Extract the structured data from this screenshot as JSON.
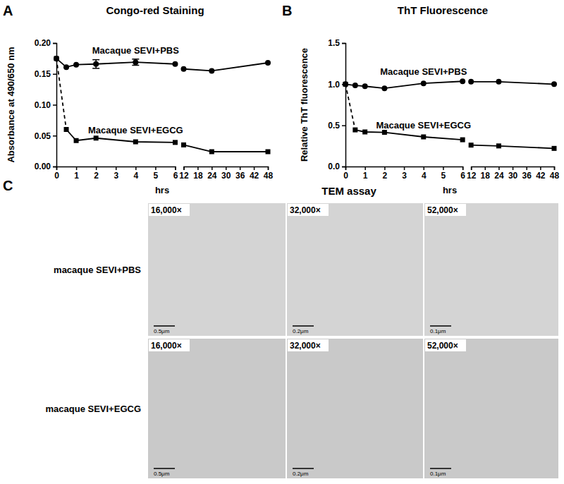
{
  "panel_labels": [
    "A",
    "B",
    "C"
  ],
  "chart_data": [
    {
      "type": "line",
      "title": "Congo-red Staining",
      "x_label": "hrs",
      "y_label": "Absorbance at 490/650 nm",
      "x": [
        0,
        0.5,
        1,
        2,
        4,
        6,
        12,
        24,
        48
      ],
      "series": [
        {
          "name": "Macaque SEVI+PBS",
          "color": "#000000",
          "marker": "circle",
          "line_style": "solid",
          "values": [
            0.175,
            0.161,
            0.165,
            0.166,
            0.169,
            0.166,
            0.158,
            0.155,
            0.168
          ],
          "errors": [
            null,
            null,
            null,
            0.007,
            0.005,
            null,
            null,
            null,
            null
          ]
        },
        {
          "name": "Macaque SEVI+EGCG",
          "color": "#000000",
          "marker": "square",
          "line_style": "solid",
          "values": [
            0.175,
            0.06,
            0.042,
            0.046,
            0.04,
            0.039,
            0.035,
            0.024,
            0.024
          ]
        }
      ],
      "xlim": [
        0,
        48
      ],
      "xticks": [
        0,
        1,
        2,
        3,
        4,
        5,
        6,
        12,
        18,
        24,
        30,
        36,
        42,
        48
      ],
      "ylim": [
        0,
        0.2
      ],
      "yticks": [
        {
          "value": 0,
          "label": "0.00"
        },
        {
          "value": 0.05,
          "label": "0.05"
        },
        {
          "value": 0.1,
          "label": "0.10"
        },
        {
          "value": 0.15,
          "label": "0.15"
        },
        {
          "value": 0.2,
          "label": "0.20"
        }
      ]
    },
    {
      "type": "line",
      "title": "ThT Fluorescence",
      "x_label": "hrs",
      "y_label": "Relative ThT fluorescence",
      "x": [
        0,
        0.5,
        1,
        2,
        4,
        6,
        12,
        24,
        48
      ],
      "series": [
        {
          "name": "Macaque SEVI+PBS",
          "color": "#000000",
          "marker": "circle",
          "line_style": "solid",
          "values": [
            1.0,
            0.985,
            0.975,
            0.95,
            1.01,
            1.035,
            1.03,
            1.03,
            1.0
          ]
        },
        {
          "name": "Macaque SEVI+EGCG",
          "color": "#000000",
          "marker": "square",
          "line_style": "solid",
          "values": [
            1.0,
            0.445,
            0.42,
            0.415,
            0.36,
            0.325,
            0.26,
            0.25,
            0.22
          ]
        }
      ],
      "xlim": [
        0,
        48
      ],
      "xticks": [
        0,
        1,
        2,
        3,
        4,
        5,
        6,
        12,
        18,
        24,
        30,
        36,
        42,
        48
      ],
      "ylim": [
        0,
        1.5
      ],
      "yticks": [
        {
          "value": 0,
          "label": "0.0"
        },
        {
          "value": 0.5,
          "label": "0.5"
        },
        {
          "value": 1,
          "label": "1.0"
        },
        {
          "value": 1.5,
          "label": "1.5"
        }
      ]
    }
  ],
  "tem": {
    "title": "TEM assay",
    "rows": [
      "macaque SEVI+PBS",
      "macaque SEVI+EGCG"
    ],
    "magnifications": [
      "16,000×",
      "32,000×",
      "52,000×"
    ],
    "scale_bars": [
      "0.5μm",
      "0.2μm",
      "0.1μm"
    ]
  }
}
